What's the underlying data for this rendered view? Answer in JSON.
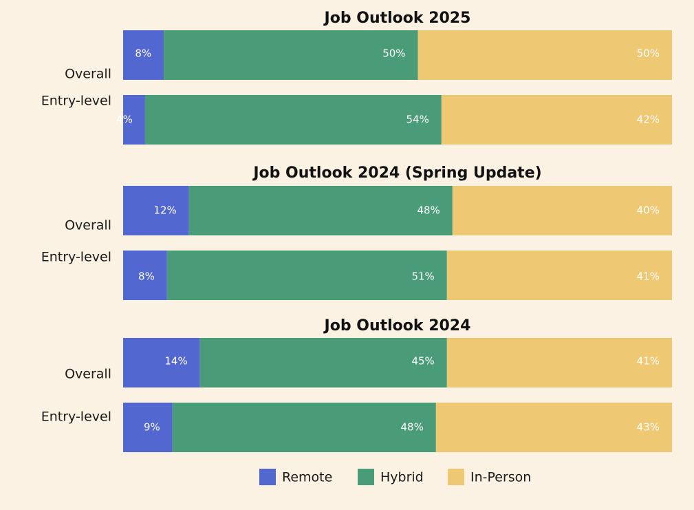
{
  "chart_data": {
    "type": "bar",
    "orientation": "horizontal",
    "stacked": true,
    "series": [
      {
        "name": "Remote",
        "color": "#5367d1"
      },
      {
        "name": "Hybrid",
        "color": "#4a9c79"
      },
      {
        "name": "In-Person",
        "color": "#eec872"
      }
    ],
    "legend_position": "bottom",
    "panels": [
      {
        "title": "Job Outlook 2025",
        "rows": [
          {
            "label": "Overall",
            "values": [
              8,
              50,
              50
            ],
            "labels": [
              "8%",
              "50%",
              "50%"
            ]
          },
          {
            "label": "Entry-level",
            "values": [
              4,
              54,
              42
            ],
            "labels": [
              "4%",
              "54%",
              "42%"
            ]
          }
        ]
      },
      {
        "title": "Job Outlook 2024 (Spring Update)",
        "rows": [
          {
            "label": "Overall",
            "values": [
              12,
              48,
              40
            ],
            "labels": [
              "12%",
              "48%",
              "40%"
            ]
          },
          {
            "label": "Entry-level",
            "values": [
              8,
              51,
              41
            ],
            "labels": [
              "8%",
              "51%",
              "41%"
            ]
          }
        ]
      },
      {
        "title": "Job Outlook 2024",
        "rows": [
          {
            "label": "Overall",
            "values": [
              14,
              45,
              41
            ],
            "labels": [
              "14%",
              "45%",
              "41%"
            ]
          },
          {
            "label": "Entry-level",
            "values": [
              9,
              48,
              43
            ],
            "labels": [
              "9%",
              "48%",
              "43%"
            ]
          }
        ]
      }
    ]
  }
}
